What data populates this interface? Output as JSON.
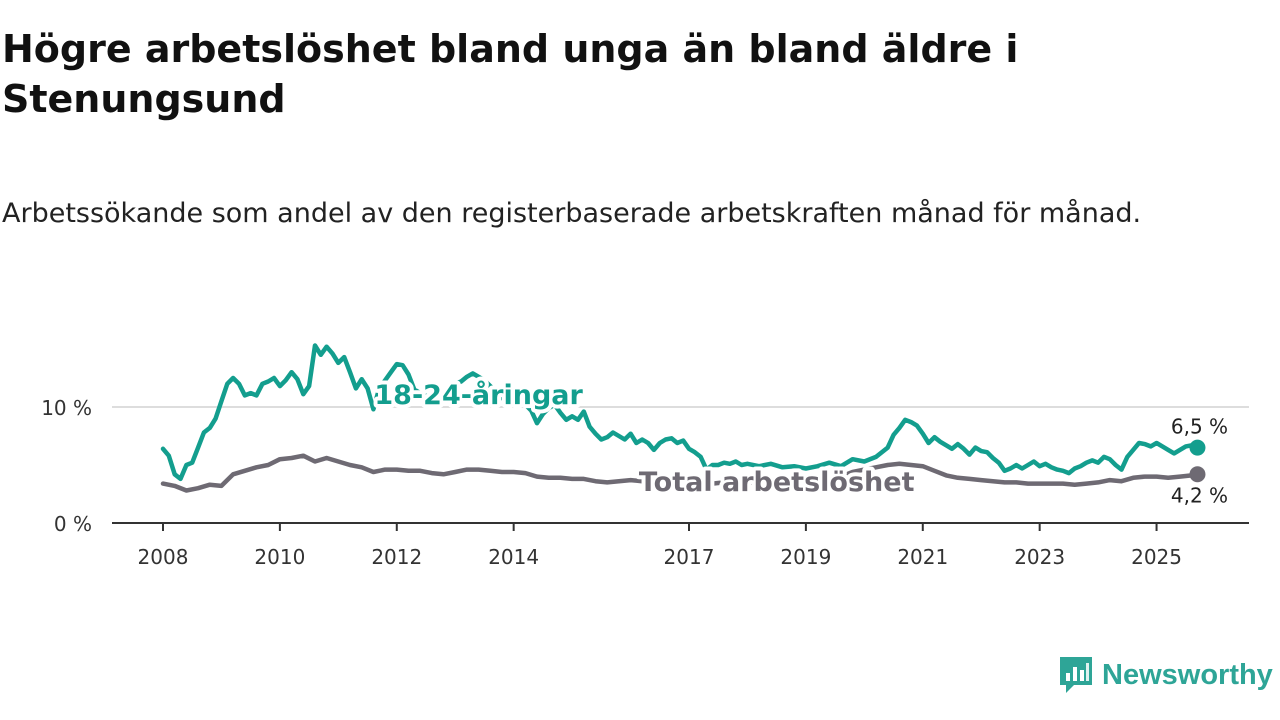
{
  "title": "Högre arbetslöshet bland unga än bland äldre i Stenungsund",
  "subtitle": "Arbetssökande som andel av den registerbaserade arbetskraften månad för månad.",
  "logo": {
    "name": "Newsworthy",
    "icon": "chart-bubble-icon",
    "color": "#2ea597"
  },
  "chart_data": {
    "type": "line",
    "title": "Högre arbetslöshet bland unga än bland äldre i Stenungsund",
    "xlabel": "",
    "ylabel": "",
    "xlim": [
      2008.0,
      2027.0
    ],
    "ylim": [
      0,
      18
    ],
    "yticks": [
      {
        "value": 0,
        "label": "0 %"
      },
      {
        "value": 10,
        "label": "10 %"
      }
    ],
    "xticks": [
      {
        "value": 2008.0,
        "label": "2008"
      },
      {
        "value": 2010.0,
        "label": "2010"
      },
      {
        "value": 2012.0,
        "label": "2012"
      },
      {
        "value": 2014.0,
        "label": "2014"
      },
      {
        "value": 2017.0,
        "label": "2017"
      },
      {
        "value": 2019.0,
        "label": "2019"
      },
      {
        "value": 2021.0,
        "label": "2021"
      },
      {
        "value": 2023.0,
        "label": "2023"
      },
      {
        "value": 2025.0,
        "label": "2025"
      }
    ],
    "gridlines": [
      10
    ],
    "series": [
      {
        "name": "18-24-åringar",
        "color": "#139e8e",
        "label_at": [
          2013.4,
          11.1
        ],
        "end_label": "6,5 %",
        "end_label_pos": "above",
        "points": [
          [
            2008.0,
            6.4
          ],
          [
            2008.1,
            5.8
          ],
          [
            2008.2,
            4.2
          ],
          [
            2008.3,
            3.8
          ],
          [
            2008.4,
            5.0
          ],
          [
            2008.5,
            5.2
          ],
          [
            2008.6,
            6.5
          ],
          [
            2008.7,
            7.8
          ],
          [
            2008.8,
            8.2
          ],
          [
            2008.9,
            9.0
          ],
          [
            2009.0,
            10.5
          ],
          [
            2009.1,
            12.0
          ],
          [
            2009.2,
            12.5
          ],
          [
            2009.3,
            12.0
          ],
          [
            2009.4,
            11.0
          ],
          [
            2009.5,
            11.2
          ],
          [
            2009.6,
            11.0
          ],
          [
            2009.7,
            12.0
          ],
          [
            2009.8,
            12.2
          ],
          [
            2009.9,
            12.5
          ],
          [
            2010.0,
            11.8
          ],
          [
            2010.1,
            12.3
          ],
          [
            2010.2,
            13.0
          ],
          [
            2010.3,
            12.4
          ],
          [
            2010.4,
            11.1
          ],
          [
            2010.5,
            11.8
          ],
          [
            2010.6,
            15.3
          ],
          [
            2010.7,
            14.5
          ],
          [
            2010.8,
            15.2
          ],
          [
            2010.9,
            14.6
          ],
          [
            2011.0,
            13.8
          ],
          [
            2011.1,
            14.3
          ],
          [
            2011.2,
            13.0
          ],
          [
            2011.3,
            11.6
          ],
          [
            2011.4,
            12.4
          ],
          [
            2011.5,
            11.6
          ],
          [
            2011.6,
            9.8
          ],
          [
            2011.7,
            11.6
          ],
          [
            2011.8,
            12.3
          ],
          [
            2011.9,
            13.0
          ],
          [
            2012.0,
            13.7
          ],
          [
            2012.1,
            13.6
          ],
          [
            2012.2,
            12.8
          ],
          [
            2012.3,
            11.5
          ],
          [
            2012.4,
            11.2
          ],
          [
            2012.5,
            11.0
          ],
          [
            2012.6,
            10.8
          ],
          [
            2012.7,
            10.7
          ],
          [
            2012.8,
            11.2
          ],
          [
            2012.9,
            11.9
          ],
          [
            2013.0,
            12.0
          ],
          [
            2013.1,
            12.2
          ],
          [
            2013.2,
            12.6
          ],
          [
            2013.3,
            12.9
          ],
          [
            2013.4,
            12.6
          ],
          [
            2013.5,
            12.3
          ],
          [
            2013.6,
            11.8
          ],
          [
            2013.7,
            11.3
          ],
          [
            2013.8,
            10.8
          ],
          [
            2013.9,
            10.3
          ],
          [
            2014.0,
            10.6
          ],
          [
            2014.1,
            10.9
          ],
          [
            2014.2,
            10.2
          ],
          [
            2014.3,
            9.7
          ],
          [
            2014.4,
            8.6
          ],
          [
            2014.5,
            9.4
          ],
          [
            2014.6,
            9.9
          ],
          [
            2014.7,
            10.2
          ],
          [
            2014.8,
            9.5
          ],
          [
            2014.9,
            8.9
          ],
          [
            2015.0,
            9.2
          ],
          [
            2015.1,
            8.9
          ],
          [
            2015.2,
            9.6
          ],
          [
            2015.3,
            8.3
          ],
          [
            2015.4,
            7.7
          ],
          [
            2015.5,
            7.2
          ],
          [
            2015.6,
            7.4
          ],
          [
            2015.7,
            7.8
          ],
          [
            2015.8,
            7.5
          ],
          [
            2015.9,
            7.2
          ],
          [
            2016.0,
            7.7
          ],
          [
            2016.1,
            6.9
          ],
          [
            2016.2,
            7.2
          ],
          [
            2016.3,
            6.9
          ],
          [
            2016.4,
            6.3
          ],
          [
            2016.5,
            6.9
          ],
          [
            2016.6,
            7.2
          ],
          [
            2016.7,
            7.3
          ],
          [
            2016.8,
            6.9
          ],
          [
            2016.9,
            7.1
          ],
          [
            2017.0,
            6.4
          ],
          [
            2017.1,
            6.1
          ],
          [
            2017.2,
            5.7
          ],
          [
            2017.3,
            4.6
          ],
          [
            2017.4,
            5.0
          ],
          [
            2017.5,
            5.0
          ],
          [
            2017.6,
            5.2
          ],
          [
            2017.7,
            5.1
          ],
          [
            2017.8,
            5.3
          ],
          [
            2017.9,
            5.0
          ],
          [
            2018.0,
            5.1
          ],
          [
            2018.2,
            4.9
          ],
          [
            2018.4,
            5.1
          ],
          [
            2018.6,
            4.8
          ],
          [
            2018.8,
            4.9
          ],
          [
            2019.0,
            4.7
          ],
          [
            2019.2,
            4.9
          ],
          [
            2019.4,
            5.2
          ],
          [
            2019.6,
            4.9
          ],
          [
            2019.8,
            5.5
          ],
          [
            2020.0,
            5.3
          ],
          [
            2020.2,
            5.7
          ],
          [
            2020.4,
            6.5
          ],
          [
            2020.5,
            7.6
          ],
          [
            2020.6,
            8.2
          ],
          [
            2020.7,
            8.9
          ],
          [
            2020.8,
            8.7
          ],
          [
            2020.9,
            8.4
          ],
          [
            2021.0,
            7.7
          ],
          [
            2021.1,
            6.9
          ],
          [
            2021.2,
            7.4
          ],
          [
            2021.3,
            7.0
          ],
          [
            2021.4,
            6.7
          ],
          [
            2021.5,
            6.4
          ],
          [
            2021.6,
            6.8
          ],
          [
            2021.7,
            6.4
          ],
          [
            2021.8,
            5.9
          ],
          [
            2021.9,
            6.5
          ],
          [
            2022.0,
            6.2
          ],
          [
            2022.1,
            6.1
          ],
          [
            2022.2,
            5.6
          ],
          [
            2022.3,
            5.2
          ],
          [
            2022.4,
            4.5
          ],
          [
            2022.5,
            4.7
          ],
          [
            2022.6,
            5.0
          ],
          [
            2022.7,
            4.7
          ],
          [
            2022.8,
            5.0
          ],
          [
            2022.9,
            5.3
          ],
          [
            2023.0,
            4.9
          ],
          [
            2023.1,
            5.1
          ],
          [
            2023.2,
            4.8
          ],
          [
            2023.3,
            4.6
          ],
          [
            2023.4,
            4.5
          ],
          [
            2023.5,
            4.3
          ],
          [
            2023.6,
            4.7
          ],
          [
            2023.7,
            4.9
          ],
          [
            2023.8,
            5.2
          ],
          [
            2023.9,
            5.4
          ],
          [
            2024.0,
            5.2
          ],
          [
            2024.1,
            5.7
          ],
          [
            2024.2,
            5.5
          ],
          [
            2024.3,
            5.0
          ],
          [
            2024.4,
            4.6
          ],
          [
            2024.5,
            5.7
          ],
          [
            2024.6,
            6.3
          ],
          [
            2024.7,
            6.9
          ],
          [
            2024.8,
            6.8
          ],
          [
            2024.9,
            6.6
          ],
          [
            2025.0,
            6.9
          ],
          [
            2025.1,
            6.6
          ],
          [
            2025.2,
            6.3
          ],
          [
            2025.3,
            6.0
          ],
          [
            2025.4,
            6.3
          ],
          [
            2025.5,
            6.6
          ],
          [
            2025.6,
            6.7
          ],
          [
            2025.7,
            6.5
          ]
        ]
      },
      {
        "name": "Total arbetslöshet",
        "color": "#6e6a73",
        "label_at": [
          2018.5,
          3.6
        ],
        "end_label": "4,2 %",
        "end_label_pos": "below",
        "points": [
          [
            2008.0,
            3.4
          ],
          [
            2008.2,
            3.2
          ],
          [
            2008.4,
            2.8
          ],
          [
            2008.6,
            3.0
          ],
          [
            2008.8,
            3.3
          ],
          [
            2009.0,
            3.2
          ],
          [
            2009.2,
            4.2
          ],
          [
            2009.4,
            4.5
          ],
          [
            2009.6,
            4.8
          ],
          [
            2009.8,
            5.0
          ],
          [
            2010.0,
            5.5
          ],
          [
            2010.2,
            5.6
          ],
          [
            2010.4,
            5.8
          ],
          [
            2010.6,
            5.3
          ],
          [
            2010.8,
            5.6
          ],
          [
            2011.0,
            5.3
          ],
          [
            2011.2,
            5.0
          ],
          [
            2011.4,
            4.8
          ],
          [
            2011.6,
            4.4
          ],
          [
            2011.8,
            4.6
          ],
          [
            2012.0,
            4.6
          ],
          [
            2012.2,
            4.5
          ],
          [
            2012.4,
            4.5
          ],
          [
            2012.6,
            4.3
          ],
          [
            2012.8,
            4.2
          ],
          [
            2013.0,
            4.4
          ],
          [
            2013.2,
            4.6
          ],
          [
            2013.4,
            4.6
          ],
          [
            2013.6,
            4.5
          ],
          [
            2013.8,
            4.4
          ],
          [
            2014.0,
            4.4
          ],
          [
            2014.2,
            4.3
          ],
          [
            2014.4,
            4.0
          ],
          [
            2014.6,
            3.9
          ],
          [
            2014.8,
            3.9
          ],
          [
            2015.0,
            3.8
          ],
          [
            2015.2,
            3.8
          ],
          [
            2015.4,
            3.6
          ],
          [
            2015.6,
            3.5
          ],
          [
            2015.8,
            3.6
          ],
          [
            2016.0,
            3.7
          ],
          [
            2016.2,
            3.6
          ],
          [
            2016.4,
            3.3
          ],
          [
            2016.6,
            3.5
          ],
          [
            2016.8,
            3.6
          ],
          [
            2017.0,
            3.7
          ],
          [
            2017.2,
            3.5
          ],
          [
            2017.4,
            3.4
          ],
          [
            2017.6,
            3.5
          ],
          [
            2017.8,
            3.6
          ],
          [
            2018.0,
            3.5
          ],
          [
            2018.2,
            3.5
          ],
          [
            2018.4,
            3.4
          ],
          [
            2018.6,
            3.5
          ],
          [
            2018.8,
            3.5
          ],
          [
            2019.0,
            3.6
          ],
          [
            2019.2,
            3.8
          ],
          [
            2019.4,
            3.9
          ],
          [
            2019.6,
            4.0
          ],
          [
            2019.8,
            4.4
          ],
          [
            2020.0,
            4.6
          ],
          [
            2020.2,
            4.8
          ],
          [
            2020.4,
            5.0
          ],
          [
            2020.6,
            5.1
          ],
          [
            2020.8,
            5.0
          ],
          [
            2021.0,
            4.9
          ],
          [
            2021.2,
            4.5
          ],
          [
            2021.4,
            4.1
          ],
          [
            2021.6,
            3.9
          ],
          [
            2021.8,
            3.8
          ],
          [
            2022.0,
            3.7
          ],
          [
            2022.2,
            3.6
          ],
          [
            2022.4,
            3.5
          ],
          [
            2022.6,
            3.5
          ],
          [
            2022.8,
            3.4
          ],
          [
            2023.0,
            3.4
          ],
          [
            2023.2,
            3.4
          ],
          [
            2023.4,
            3.4
          ],
          [
            2023.6,
            3.3
          ],
          [
            2023.8,
            3.4
          ],
          [
            2024.0,
            3.5
          ],
          [
            2024.2,
            3.7
          ],
          [
            2024.4,
            3.6
          ],
          [
            2024.6,
            3.9
          ],
          [
            2024.8,
            4.0
          ],
          [
            2025.0,
            4.0
          ],
          [
            2025.2,
            3.9
          ],
          [
            2025.4,
            4.0
          ],
          [
            2025.6,
            4.1
          ],
          [
            2025.7,
            4.2
          ]
        ]
      }
    ]
  }
}
